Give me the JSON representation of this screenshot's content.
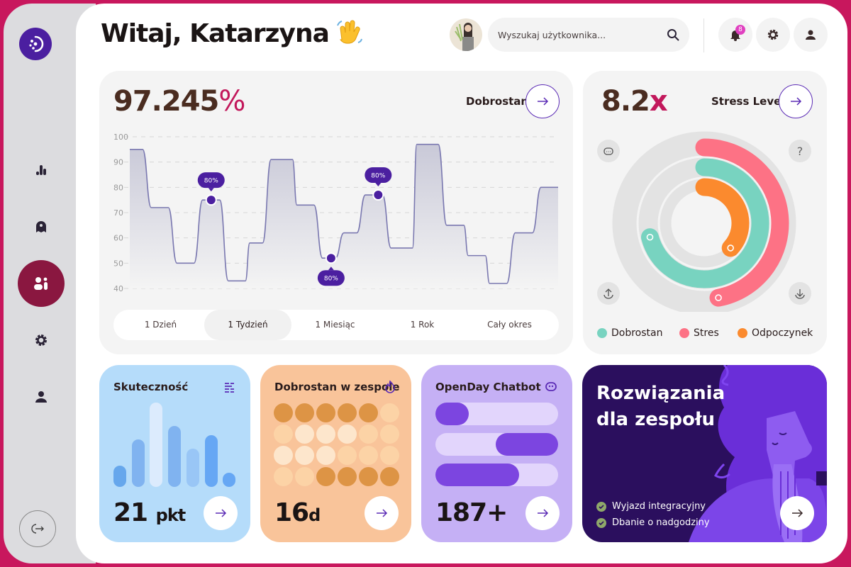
{
  "header": {
    "greeting": "Witaj, Katarzyna",
    "greeting_emoji": "👋",
    "search_placeholder": "Wyszukaj użytkownika...",
    "notification_count": "8"
  },
  "sidebar": {
    "items": [
      {
        "icon": "bar-chart-icon"
      },
      {
        "icon": "ghost-icon"
      },
      {
        "icon": "team-icon",
        "active": true
      },
      {
        "icon": "gear-icon"
      },
      {
        "icon": "user-icon"
      }
    ],
    "logout_icon": "logout-icon"
  },
  "wellbeing": {
    "value": "97.245",
    "unit": "%",
    "title": "Dobrostan",
    "tabs": [
      "1 Dzień",
      "1 Tydzień",
      "1 Miesiąc",
      "1 Rok",
      "Cały okres"
    ],
    "active_tab": 1
  },
  "chart_data": {
    "type": "line",
    "title": "Dobrostan",
    "ylim": [
      40,
      100
    ],
    "yticks": [
      "100",
      "90",
      "80",
      "70",
      "60",
      "50",
      "40"
    ],
    "xlim": [
      0,
      100
    ],
    "grid": true,
    "plateaus": [
      [
        0,
        3,
        95
      ],
      [
        5,
        9,
        72
      ],
      [
        11,
        15,
        50
      ],
      [
        17,
        21,
        75
      ],
      [
        23,
        27,
        43
      ],
      [
        28,
        31,
        58
      ],
      [
        33,
        38,
        91
      ],
      [
        39,
        43,
        73
      ],
      [
        45,
        48,
        52
      ],
      [
        50,
        53,
        62
      ],
      [
        55,
        59,
        77
      ],
      [
        61,
        66,
        56
      ],
      [
        67,
        72,
        97
      ],
      [
        74,
        78,
        65
      ],
      [
        79,
        83,
        53
      ],
      [
        84,
        88,
        42
      ],
      [
        90,
        94,
        62
      ],
      [
        96,
        100,
        80
      ]
    ],
    "markers": [
      {
        "x": 19,
        "y": 75,
        "label": "80%",
        "pos": "above"
      },
      {
        "x": 47,
        "y": 52,
        "label": "80%",
        "pos": "below"
      },
      {
        "x": 58,
        "y": 77,
        "label": "80%",
        "pos": "above"
      }
    ]
  },
  "stress": {
    "value": "8.2",
    "unit": "x",
    "title": "Stress Level",
    "rings": [
      {
        "name": "Stres",
        "fraction": 0.47,
        "color": "#fd7285"
      },
      {
        "name": "Dobrostan",
        "fraction": 0.71,
        "color": "#78d3c0"
      },
      {
        "name": "Odpoczynek",
        "fraction": 0.37,
        "color": "#fb8a2e"
      }
    ],
    "legend": [
      {
        "label": "Dobrostan",
        "color": "#78d3c0"
      },
      {
        "label": "Stres",
        "color": "#fd7285"
      },
      {
        "label": "Odpoczynek",
        "color": "#fb8a2e"
      }
    ]
  },
  "cards": {
    "effectiveness": {
      "title": "Skuteczność",
      "value": "21",
      "unit": "pkt",
      "bars": [
        25,
        56,
        100,
        72,
        45,
        61,
        17
      ]
    },
    "team": {
      "title": "Dobrostan w zespole",
      "value": "16",
      "unit": "d",
      "grid": [
        [
          2,
          2,
          2,
          2,
          2,
          1
        ],
        [
          1,
          0,
          0,
          0,
          1,
          1
        ],
        [
          0,
          0,
          0,
          1,
          1,
          1
        ],
        [
          1,
          1,
          2,
          2,
          2,
          2
        ]
      ]
    },
    "chatbot": {
      "title": "OpenDay Chatbot",
      "value": "187+",
      "bars": [
        {
          "start": 0,
          "end": 0.27
        },
        {
          "start": 0.49,
          "end": 1
        },
        {
          "start": 0,
          "end": 0.68
        }
      ]
    },
    "solutions": {
      "title_line1": "Rozwiązania",
      "title_line2": "dla zespołu",
      "items": [
        "Wyjazd integracyjny",
        "Dbanie o nadgodziny"
      ]
    }
  }
}
